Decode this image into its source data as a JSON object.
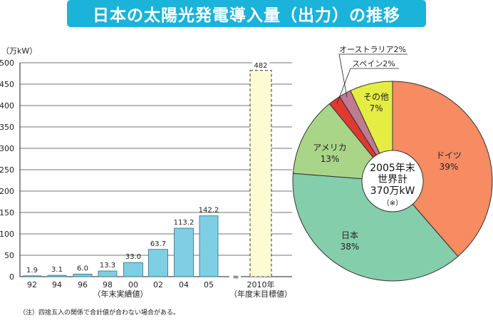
{
  "title": "日本の太陽光発電導入量（出力）の推移",
  "note": "（注）四捨五入の関係で合計値が合わない場合がある。",
  "chart_data": [
    {
      "type": "bar",
      "ylabel": "（万kW）",
      "ylim": [
        0,
        500
      ],
      "yticks": [
        0,
        50,
        100,
        150,
        200,
        250,
        300,
        350,
        400,
        450,
        500
      ],
      "categories": [
        "92",
        "94",
        "96",
        "98",
        "00",
        "02",
        "04",
        "05",
        "2010年"
      ],
      "values": [
        1.9,
        3.1,
        6.0,
        13.3,
        33.0,
        63.7,
        113.2,
        142.2,
        482
      ],
      "value_labels": [
        "1.9",
        "3.1",
        "6.0",
        "13.3",
        "33.0",
        "63.7",
        "113.2",
        "142.2",
        "482"
      ],
      "group_labels": [
        "（年末実績値）",
        "（年度末目標値）"
      ],
      "colors": {
        "actual": "#7ecfe3",
        "target": "#fdfbd2",
        "target_border": "#333333"
      },
      "grid": true
    },
    {
      "type": "pie",
      "center_label": [
        "2005年末",
        "世界計",
        "370万kW",
        "（※）"
      ],
      "slices": [
        {
          "name": "ドイツ",
          "value": 39,
          "label": "39%",
          "color": "#f78b62"
        },
        {
          "name": "日本",
          "value": 38,
          "label": "38%",
          "color": "#84ceac"
        },
        {
          "name": "アメリカ",
          "value": 13,
          "label": "13%",
          "color": "#a9d588"
        },
        {
          "name": "スペイン",
          "value": 2,
          "label": "2%",
          "color": "#e0392f"
        },
        {
          "name": "オーストラリア",
          "value": 2,
          "label": "2%",
          "color": "#c07a91"
        },
        {
          "name": "その他",
          "value": 7,
          "label": "7%",
          "color": "#e5ed43"
        }
      ],
      "callouts": [
        "オーストラリア2%",
        "スペイン2%"
      ]
    }
  ]
}
